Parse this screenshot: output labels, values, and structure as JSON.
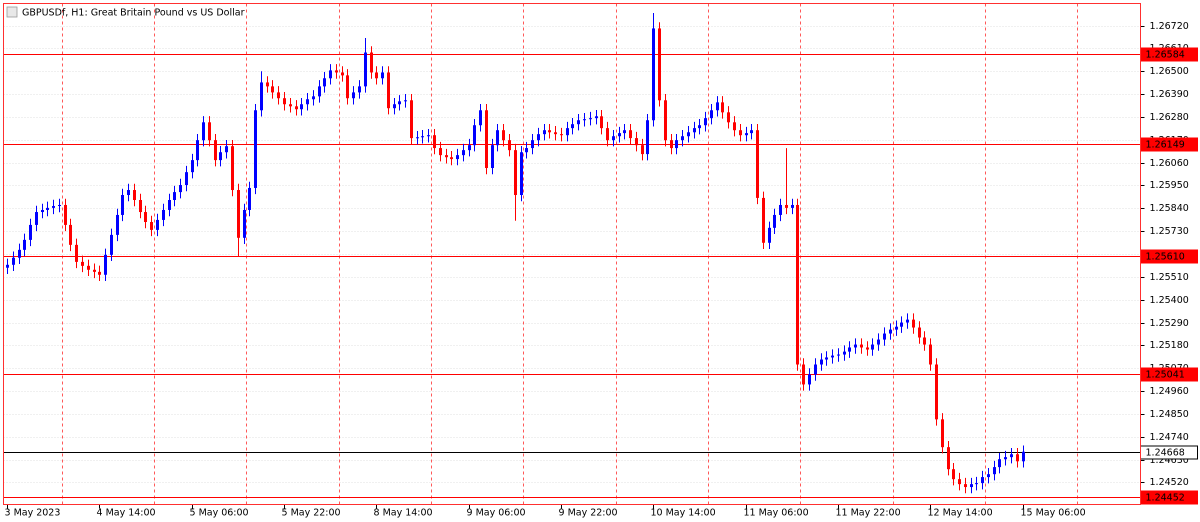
{
  "chart_data": {
    "type": "candlestick",
    "title": "GBPUSDf, H1:  Great Britain Pound vs US Dollar",
    "up_color": "#0000ff",
    "down_color": "#ff0000",
    "level_color": "#ff0000",
    "last_color": "#000000",
    "grid": true,
    "ylim": [
      1.24414,
      1.26826
    ],
    "yticks": [
      {
        "value": 1.2452,
        "label": "1.24520"
      },
      {
        "value": 1.2463,
        "label": "1.24630"
      },
      {
        "value": 1.2474,
        "label": "1.24740"
      },
      {
        "value": 1.2485,
        "label": "1.24850"
      },
      {
        "value": 1.2496,
        "label": "1.24960"
      },
      {
        "value": 1.2507,
        "label": "1.25070"
      },
      {
        "value": 1.2518,
        "label": "1.25180"
      },
      {
        "value": 1.2529,
        "label": "1.25290"
      },
      {
        "value": 1.254,
        "label": "1.25400"
      },
      {
        "value": 1.2551,
        "label": "1.25510"
      },
      {
        "value": 1.2562,
        "label": "1.25620"
      },
      {
        "value": 1.2573,
        "label": "1.25730"
      },
      {
        "value": 1.2584,
        "label": "1.25840"
      },
      {
        "value": 1.2595,
        "label": "1.25950"
      },
      {
        "value": 1.2606,
        "label": "1.26060"
      },
      {
        "value": 1.2617,
        "label": "1.26170"
      },
      {
        "value": 1.2628,
        "label": "1.26280"
      },
      {
        "value": 1.2639,
        "label": "1.26390"
      },
      {
        "value": 1.265,
        "label": "1.26500"
      },
      {
        "value": 1.2661,
        "label": "1.26610"
      },
      {
        "value": 1.2672,
        "label": "1.26720"
      }
    ],
    "levels": [
      1.26584,
      1.26149,
      {
        "value": 1.2561,
        "label": "1.25610"
      },
      1.25041,
      1.24452
    ],
    "last_price": 1.24668,
    "categories": [
      "3 May 2023",
      null,
      null,
      null,
      null,
      null,
      null,
      null,
      null,
      null,
      null,
      null,
      null,
      null,
      null,
      null,
      "4 May 14:00",
      null,
      null,
      null,
      null,
      null,
      null,
      null,
      null,
      null,
      null,
      null,
      null,
      null,
      null,
      null,
      "5 May 06:00",
      null,
      null,
      null,
      null,
      null,
      null,
      null,
      null,
      null,
      null,
      null,
      null,
      null,
      null,
      null,
      "5 May 22:00",
      null,
      null,
      null,
      null,
      null,
      null,
      null,
      null,
      null,
      null,
      null,
      null,
      null,
      null,
      null,
      "8 May 14:00",
      null,
      null,
      null,
      null,
      null,
      null,
      null,
      null,
      null,
      null,
      null,
      null,
      null,
      null,
      null,
      "9 May 06:00",
      null,
      null,
      null,
      null,
      null,
      null,
      null,
      null,
      null,
      null,
      null,
      null,
      null,
      null,
      null,
      "9 May 22:00",
      null,
      null,
      null,
      null,
      null,
      null,
      null,
      null,
      null,
      null,
      null,
      null,
      null,
      null,
      null,
      "10 May 14:00",
      null,
      null,
      null,
      null,
      null,
      null,
      null,
      null,
      null,
      null,
      null,
      null,
      null,
      null,
      null,
      "11 May 06:00",
      null,
      null,
      null,
      null,
      null,
      null,
      null,
      null,
      null,
      null,
      null,
      null,
      null,
      null,
      null,
      "11 May 22:00",
      null,
      null,
      null,
      null,
      null,
      null,
      null,
      null,
      null,
      null,
      null,
      null,
      null,
      null,
      null,
      "12 May 14:00",
      null,
      null,
      null,
      null,
      null,
      null,
      null,
      null,
      null,
      null,
      null,
      null,
      null,
      null,
      null,
      "15 May 06:00"
    ],
    "open": [
      1.25554,
      1.25568,
      1.25602,
      1.2564,
      1.25688,
      1.2576,
      1.25822,
      1.25832,
      1.25842,
      1.25851,
      1.25856,
      1.2576,
      1.25664,
      1.25582,
      1.25563,
      1.25544,
      1.25534,
      1.2552,
      1.25616,
      1.25712,
      1.25808,
      1.25904,
      1.25928,
      1.2588,
      1.25822,
      1.25774,
      1.25736,
      1.25784,
      1.25832,
      1.2588,
      1.25918,
      1.25952,
      1.26014,
      1.26072,
      1.26168,
      1.26254,
      1.26168,
      1.26072,
      1.2611,
      1.26139,
      1.25928,
      1.25698,
      1.25832,
      1.25938,
      1.26312,
      1.26446,
      1.26427,
      1.26398,
      1.2637,
      1.26341,
      1.26331,
      1.26317,
      1.26341,
      1.26365,
      1.26379,
      1.26427,
      1.26466,
      1.26504,
      1.26494,
      1.2648,
      1.2637,
      1.26398,
      1.26427,
      1.2659,
      1.26494,
      1.26466,
      1.26494,
      1.26322,
      1.26341,
      1.26355,
      1.2636,
      1.26178,
      1.26182,
      1.26187,
      1.26192,
      1.2613,
      1.26096,
      1.26086,
      1.26077,
      1.26096,
      1.2612,
      1.26144,
      1.2624,
      1.26312,
      1.26034,
      1.26144,
      1.26216,
      1.26168,
      1.2612,
      1.25904,
      1.2611,
      1.2613,
      1.26168,
      1.26197,
      1.26216,
      1.26206,
      1.26197,
      1.26192,
      1.26226,
      1.26245,
      1.26264,
      1.26269,
      1.26274,
      1.26283,
      1.26226,
      1.26168,
      1.26187,
      1.26202,
      1.26216,
      1.26178,
      1.26144,
      1.26101,
      1.26264,
      1.26706,
      1.2636,
      1.26168,
      1.2613,
      1.26168,
      1.26187,
      1.26206,
      1.26226,
      1.2624,
      1.26274,
      1.26312,
      1.2635,
      1.26302,
      1.26254,
      1.26216,
      1.26192,
      1.26202,
      1.26216,
      1.2589,
      1.25674,
      1.25746,
      1.25808,
      1.25856,
      1.25842,
      1.25856,
      1.25088,
      1.24992,
      1.2504,
      1.25088,
      1.25112,
      1.25122,
      1.25131,
      1.25136,
      1.2515,
      1.2517,
      1.25184,
      1.2517,
      1.2516,
      1.25184,
      1.25208,
      1.25237,
      1.25256,
      1.2527,
      1.2529,
      1.25304,
      1.25266,
      1.25218,
      1.25184,
      1.25088,
      1.24824,
      1.2469,
      1.24584,
      1.24536,
      1.24512,
      1.24498,
      1.24512,
      1.24517,
      1.24546,
      1.2456,
      1.24594,
      1.24632,
      1.24642,
      1.24656,
      1.24622
    ],
    "high": [
      1.25598,
      1.25632,
      1.2567,
      1.25718,
      1.2579,
      1.25852,
      1.25862,
      1.25872,
      1.25881,
      1.25886,
      1.25886,
      1.2579,
      1.25694,
      1.25612,
      1.25593,
      1.25574,
      1.25564,
      1.25646,
      1.25742,
      1.25838,
      1.25934,
      1.25958,
      1.25958,
      1.2591,
      1.25852,
      1.25804,
      1.25814,
      1.25862,
      1.2591,
      1.25948,
      1.25982,
      1.26044,
      1.26102,
      1.26198,
      1.26284,
      1.26284,
      1.26198,
      1.2614,
      1.26169,
      1.26169,
      1.25958,
      1.25862,
      1.25968,
      1.26342,
      1.265,
      1.26476,
      1.26457,
      1.26428,
      1.264,
      1.26371,
      1.26361,
      1.26371,
      1.26395,
      1.26409,
      1.26457,
      1.26496,
      1.26534,
      1.26534,
      1.26524,
      1.2651,
      1.26428,
      1.26457,
      1.2666,
      1.2662,
      1.26524,
      1.26524,
      1.26524,
      1.26371,
      1.26385,
      1.2639,
      1.2639,
      1.26212,
      1.26217,
      1.26222,
      1.26222,
      1.2616,
      1.26126,
      1.26116,
      1.26126,
      1.2615,
      1.26174,
      1.2627,
      1.26342,
      1.26342,
      1.26174,
      1.26246,
      1.26246,
      1.26198,
      1.2615,
      1.2614,
      1.2616,
      1.26198,
      1.26227,
      1.26246,
      1.26246,
      1.26236,
      1.26227,
      1.26256,
      1.26275,
      1.26294,
      1.26299,
      1.26304,
      1.26313,
      1.26313,
      1.26256,
      1.26217,
      1.26232,
      1.26246,
      1.26246,
      1.26208,
      1.26174,
      1.26294,
      1.2678,
      1.26736,
      1.2639,
      1.26198,
      1.26198,
      1.26217,
      1.26236,
      1.26256,
      1.2627,
      1.26304,
      1.26342,
      1.2638,
      1.2638,
      1.26332,
      1.26284,
      1.26246,
      1.26232,
      1.26246,
      1.26246,
      1.2592,
      1.25776,
      1.25838,
      1.25886,
      1.2613,
      1.25886,
      1.25886,
      1.25118,
      1.2507,
      1.25118,
      1.25142,
      1.25152,
      1.25161,
      1.25166,
      1.2518,
      1.252,
      1.25214,
      1.25214,
      1.252,
      1.25214,
      1.25238,
      1.25267,
      1.25286,
      1.253,
      1.2532,
      1.25334,
      1.25334,
      1.25296,
      1.25248,
      1.25214,
      1.25118,
      1.24854,
      1.2472,
      1.24614,
      1.24566,
      1.24542,
      1.24542,
      1.24547,
      1.24576,
      1.2459,
      1.24624,
      1.24662,
      1.24672,
      1.24686,
      1.24686,
      1.24698
    ],
    "low": [
      1.25524,
      1.25538,
      1.25572,
      1.2561,
      1.25658,
      1.2573,
      1.25792,
      1.25802,
      1.25812,
      1.25821,
      1.2573,
      1.25634,
      1.25552,
      1.25533,
      1.25514,
      1.25504,
      1.2549,
      1.2549,
      1.25586,
      1.25682,
      1.25778,
      1.25874,
      1.2585,
      1.25792,
      1.25744,
      1.25706,
      1.25706,
      1.25754,
      1.25802,
      1.2585,
      1.25888,
      1.25922,
      1.25984,
      1.26042,
      1.26138,
      1.26138,
      1.26042,
      1.26042,
      1.2608,
      1.25898,
      1.2561,
      1.25668,
      1.25802,
      1.25908,
      1.26282,
      1.26397,
      1.26368,
      1.2634,
      1.26311,
      1.26301,
      1.26287,
      1.26287,
      1.26311,
      1.26335,
      1.26349,
      1.26397,
      1.26436,
      1.26464,
      1.2645,
      1.2634,
      1.2634,
      1.26368,
      1.26397,
      1.26464,
      1.26436,
      1.26436,
      1.26292,
      1.26292,
      1.26311,
      1.26325,
      1.26148,
      1.26148,
      1.26152,
      1.26157,
      1.261,
      1.26066,
      1.26056,
      1.26047,
      1.26047,
      1.26066,
      1.2609,
      1.26114,
      1.2621,
      1.26004,
      1.26004,
      1.26114,
      1.26138,
      1.2609,
      1.2578,
      1.25874,
      1.2608,
      1.261,
      1.26138,
      1.26167,
      1.26176,
      1.26167,
      1.26162,
      1.26162,
      1.26196,
      1.26215,
      1.26234,
      1.26239,
      1.26244,
      1.26196,
      1.26138,
      1.26138,
      1.26157,
      1.26172,
      1.26148,
      1.26114,
      1.26071,
      1.26071,
      1.26234,
      1.2633,
      1.26138,
      1.261,
      1.261,
      1.26138,
      1.26157,
      1.26176,
      1.26196,
      1.2621,
      1.26244,
      1.26282,
      1.26272,
      1.26224,
      1.26186,
      1.26162,
      1.26162,
      1.26172,
      1.2586,
      1.25644,
      1.25644,
      1.25716,
      1.25778,
      1.25812,
      1.25812,
      1.25058,
      1.24962,
      1.24962,
      1.2501,
      1.25058,
      1.25082,
      1.25092,
      1.25101,
      1.25106,
      1.2512,
      1.2514,
      1.2514,
      1.2513,
      1.2513,
      1.25154,
      1.25178,
      1.25207,
      1.25226,
      1.2524,
      1.2526,
      1.25236,
      1.25188,
      1.25154,
      1.25058,
      1.24794,
      1.2466,
      1.24554,
      1.24506,
      1.24482,
      1.24468,
      1.24468,
      1.24482,
      1.24487,
      1.24516,
      1.2453,
      1.24564,
      1.24602,
      1.24612,
      1.24592,
      1.24592
    ],
    "close": [
      1.25568,
      1.25602,
      1.2564,
      1.25688,
      1.2576,
      1.25822,
      1.25832,
      1.25842,
      1.25851,
      1.25856,
      1.2576,
      1.25664,
      1.25582,
      1.25563,
      1.25544,
      1.25534,
      1.2552,
      1.25616,
      1.25712,
      1.25808,
      1.25904,
      1.25928,
      1.2588,
      1.25822,
      1.25774,
      1.25736,
      1.25784,
      1.25832,
      1.2588,
      1.25918,
      1.25952,
      1.26014,
      1.26072,
      1.26168,
      1.26254,
      1.26168,
      1.26072,
      1.2611,
      1.26139,
      1.25928,
      1.25698,
      1.25832,
      1.25938,
      1.26312,
      1.26446,
      1.26427,
      1.26398,
      1.2637,
      1.26341,
      1.26331,
      1.26317,
      1.26341,
      1.26365,
      1.26379,
      1.26427,
      1.26466,
      1.26504,
      1.26494,
      1.2648,
      1.2637,
      1.26398,
      1.26427,
      1.2659,
      1.26494,
      1.26466,
      1.26494,
      1.26322,
      1.26341,
      1.26355,
      1.2636,
      1.26178,
      1.26182,
      1.26187,
      1.26192,
      1.2613,
      1.26096,
      1.26086,
      1.26077,
      1.26096,
      1.2612,
      1.26144,
      1.2624,
      1.26312,
      1.26034,
      1.26144,
      1.26216,
      1.26168,
      1.2612,
      1.25904,
      1.2611,
      1.2613,
      1.26168,
      1.26197,
      1.26216,
      1.26206,
      1.26197,
      1.26192,
      1.26226,
      1.26245,
      1.26264,
      1.26269,
      1.26274,
      1.26283,
      1.26226,
      1.26168,
      1.26187,
      1.26202,
      1.26216,
      1.26178,
      1.26144,
      1.26101,
      1.26264,
      1.26706,
      1.2636,
      1.26168,
      1.2613,
      1.26168,
      1.26187,
      1.26206,
      1.26226,
      1.2624,
      1.26274,
      1.26312,
      1.2635,
      1.26302,
      1.26254,
      1.26216,
      1.26192,
      1.26202,
      1.26216,
      1.2589,
      1.25674,
      1.25746,
      1.25808,
      1.25856,
      1.25842,
      1.25856,
      1.25088,
      1.24992,
      1.2504,
      1.25088,
      1.25112,
      1.25122,
      1.25131,
      1.25136,
      1.2515,
      1.2517,
      1.25184,
      1.2517,
      1.2516,
      1.25184,
      1.25208,
      1.25237,
      1.25256,
      1.2527,
      1.2529,
      1.25304,
      1.25266,
      1.25218,
      1.25184,
      1.25088,
      1.24824,
      1.2469,
      1.24584,
      1.24536,
      1.24512,
      1.24498,
      1.24512,
      1.24517,
      1.24546,
      1.2456,
      1.24594,
      1.24632,
      1.24642,
      1.24656,
      1.24622,
      1.24668
    ]
  }
}
